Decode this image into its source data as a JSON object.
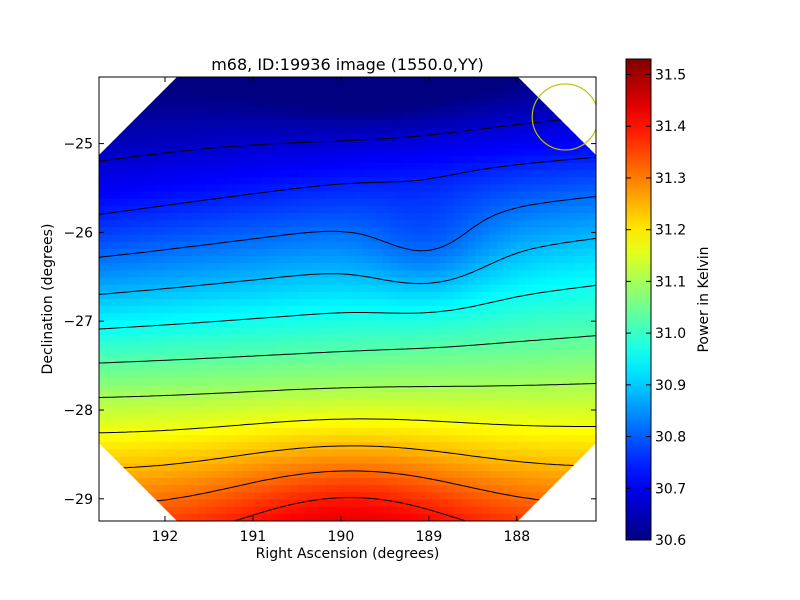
{
  "chart_data": {
    "type": "heatmap",
    "title": "m68, ID:19936 image (1550.0,YY)",
    "xlabel": "Right Ascension (degrees)",
    "ylabel": "Declination (degrees)",
    "colorbar_label": "Power in Kelvin",
    "colormap": "jet",
    "xlim": [
      192.75,
      187.1
    ],
    "ylim": [
      -29.25,
      -24.25
    ],
    "x_ticks": [
      192,
      191,
      190,
      189,
      188
    ],
    "x_tick_labels": [
      "192",
      "191",
      "190",
      "189",
      "188"
    ],
    "y_ticks": [
      -25,
      -26,
      -27,
      -28,
      -29
    ],
    "y_tick_labels": [
      "−25",
      "−26",
      "−27",
      "−28",
      "−29"
    ],
    "colorbar_range": [
      30.6,
      31.53
    ],
    "colorbar_ticks": [
      30.6,
      30.7,
      30.8,
      30.9,
      31.0,
      31.1,
      31.2,
      31.3,
      31.4,
      31.5
    ],
    "colorbar_tick_labels": [
      "30.6",
      "30.7",
      "30.8",
      "30.9",
      "31.0",
      "31.1",
      "31.2",
      "31.3",
      "31.4",
      "31.5"
    ],
    "value_range": [
      30.6,
      31.53
    ],
    "contour_levels": 12,
    "footprint": "octagon",
    "beam_marker": {
      "ra": 187.45,
      "dec": -24.7,
      "color": "#bfbf00"
    },
    "max_region": {
      "ra": 189.9,
      "dec": -29.2
    },
    "min_region": {
      "ra": 189.6,
      "dec": -24.3
    }
  }
}
